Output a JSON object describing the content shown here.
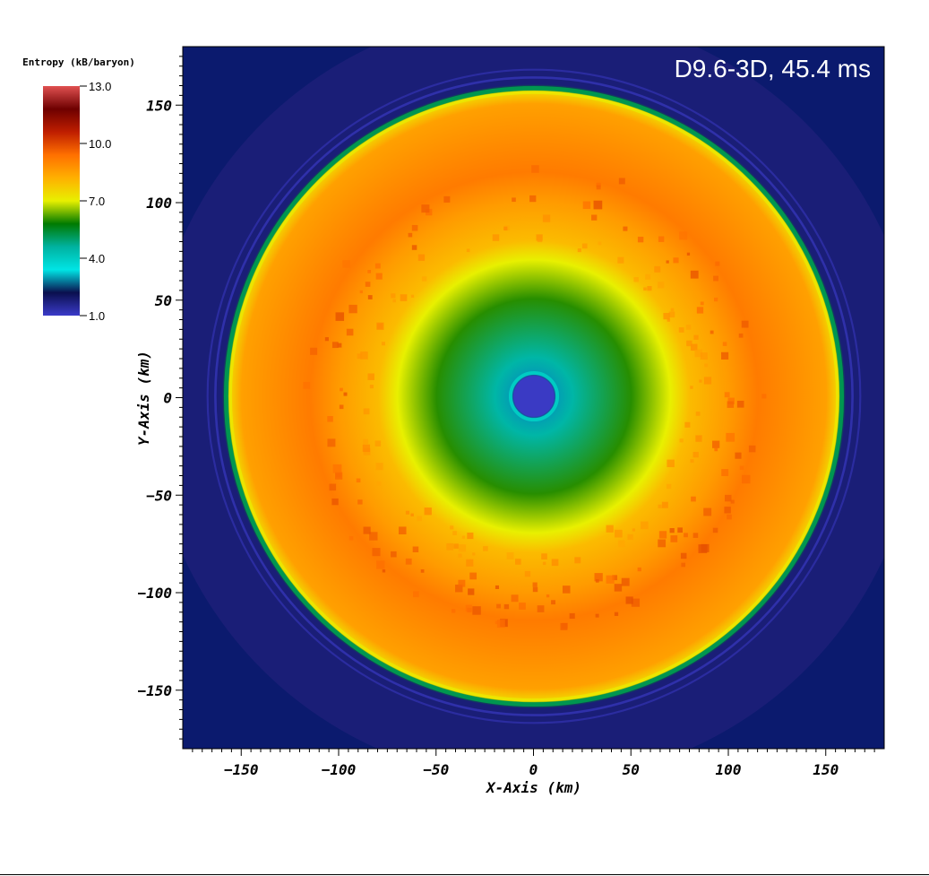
{
  "chart_data": {
    "type": "heatmap",
    "title": "D9.6-3D, 45.4 ms",
    "xlabel": "X-Axis (km)",
    "ylabel": "Y-Axis (km)",
    "xlim": [
      -180,
      180
    ],
    "ylim": [
      -180,
      180
    ],
    "x_ticks": [
      -150,
      -100,
      -50,
      0,
      50,
      100,
      150
    ],
    "y_ticks": [
      -150,
      -100,
      -50,
      0,
      50,
      100,
      150
    ],
    "x_tick_labels": [
      "−150",
      "−100",
      "−50",
      "0",
      "50",
      "100",
      "150"
    ],
    "y_tick_labels": [
      "−150",
      "−100",
      "−50",
      "0",
      "50",
      "100",
      "150"
    ],
    "colorbar": {
      "title": "Entropy (kB/baryon)",
      "range": [
        1.0,
        13.0
      ],
      "ticks": [
        13.0,
        10.0,
        7.0,
        4.0,
        1.0
      ],
      "tick_labels": [
        "13.0",
        "10.0",
        "7.0",
        "4.0",
        "1.0"
      ],
      "colormap": [
        "#3b3bc9",
        "#0a0f4e",
        "#00e5e5",
        "#00b2a0",
        "#007a00",
        "#e8f000",
        "#ffb000",
        "#ff7000",
        "#bf1e00",
        "#6e0000",
        "#e05050"
      ]
    },
    "field": {
      "description_radial_profile": [
        {
          "r": 0,
          "entropy": 1.5
        },
        {
          "r": 10,
          "entropy": 1.5
        },
        {
          "r": 12,
          "entropy": 3.0
        },
        {
          "r": 20,
          "entropy": 4.5
        },
        {
          "r": 50,
          "entropy": 6.0
        },
        {
          "r": 70,
          "entropy": 7.0
        },
        {
          "r": 80,
          "entropy": 8.0
        },
        {
          "r": 100,
          "entropy": 8.6
        },
        {
          "r": 115,
          "entropy": 9.2
        },
        {
          "r": 150,
          "entropy": 8.5
        },
        {
          "r": 156,
          "entropy": 7.5
        },
        {
          "r": 158,
          "entropy": 5.5
        },
        {
          "r": 160,
          "entropy": 1.8
        },
        {
          "r": 180,
          "entropy": 1.8
        }
      ]
    }
  }
}
